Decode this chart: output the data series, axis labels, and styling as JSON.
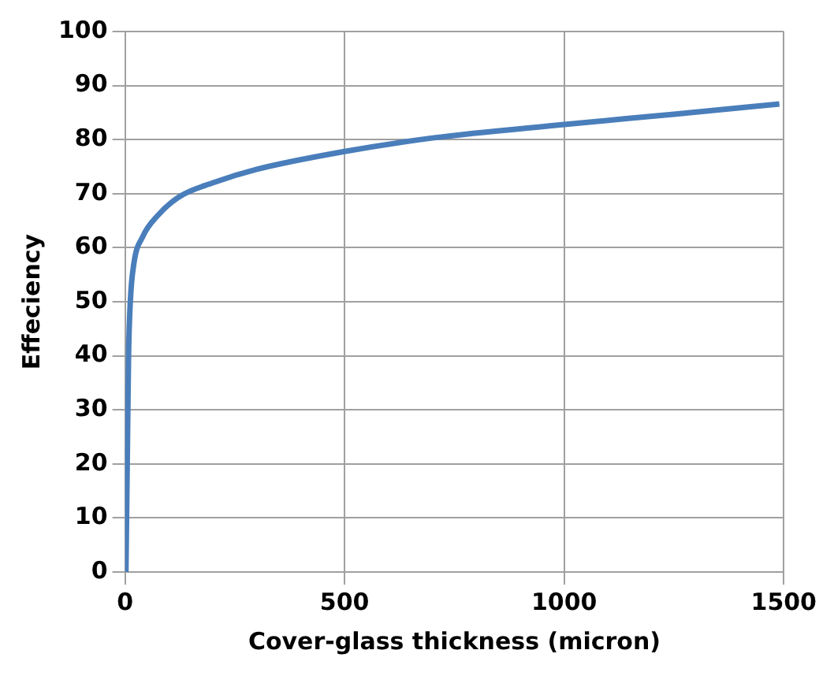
{
  "chart_data": {
    "type": "line",
    "xlabel": "Cover-glass thickness (micron)",
    "ylabel": "Effeciency",
    "x": [
      2,
      5,
      8,
      12,
      20,
      40,
      75,
      125,
      200,
      300,
      500,
      700,
      1000,
      1250,
      1490
    ],
    "series": [
      {
        "color": "#4a7ebb",
        "values": [
          0,
          20,
          40,
          50,
          57,
          62,
          66,
          69.5,
          72,
          74.5,
          77.8,
          80.3,
          82.8,
          84.7,
          86.6
        ]
      }
    ],
    "xlim": [
      0,
      1500
    ],
    "xticks": [
      0,
      500,
      1000,
      1500
    ],
    "ylim": [
      0,
      100
    ],
    "yticks": [
      0,
      10,
      20,
      30,
      40,
      50,
      60,
      70,
      80,
      90,
      100
    ],
    "grid": true,
    "legend": false,
    "marker": "none",
    "line_style": "solid"
  }
}
